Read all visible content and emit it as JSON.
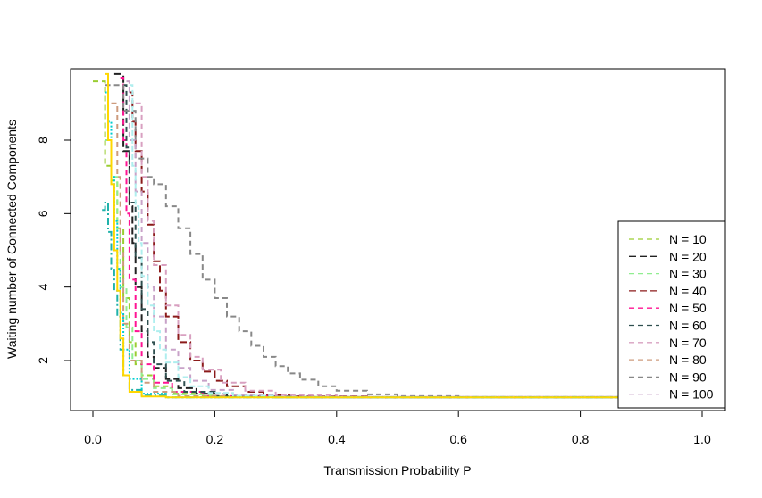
{
  "chart_data": {
    "type": "line",
    "title": "",
    "xlabel": "Transmission Probability P",
    "ylabel": "Waiting number of Connected Components",
    "xlim": [
      0.0,
      1.0
    ],
    "ylim": [
      1.0,
      9.7
    ],
    "x_ticks": [
      "0.0",
      "0.2",
      "0.4",
      "0.6",
      "0.8",
      "1.0"
    ],
    "y_ticks": [
      "2",
      "4",
      "6",
      "8"
    ],
    "grid": false,
    "legend_position": "right",
    "series": [
      {
        "name": "N = 10",
        "color": "#9ACD32",
        "dash": "6,4",
        "points": [
          [
            0.0,
            9.6
          ],
          [
            0.02,
            7.3
          ],
          [
            0.03,
            6.9
          ],
          [
            0.04,
            5.6
          ],
          [
            0.05,
            3.7
          ],
          [
            0.06,
            2.5
          ],
          [
            0.07,
            1.9
          ],
          [
            0.08,
            1.6
          ],
          [
            0.1,
            1.3
          ],
          [
            0.13,
            1.1
          ],
          [
            0.18,
            1.02
          ],
          [
            0.3,
            1.0
          ],
          [
            1.0,
            1.0
          ]
        ]
      },
      {
        "name": "N = 20",
        "color": "#222222",
        "dash": "8,4",
        "points": [
          [
            0.035,
            9.8
          ],
          [
            0.05,
            7.7
          ],
          [
            0.06,
            6.2
          ],
          [
            0.065,
            5.2
          ],
          [
            0.07,
            4.0
          ],
          [
            0.08,
            2.8
          ],
          [
            0.09,
            2.1
          ],
          [
            0.1,
            1.8
          ],
          [
            0.12,
            1.5
          ],
          [
            0.14,
            1.25
          ],
          [
            0.17,
            1.1
          ],
          [
            0.22,
            1.02
          ],
          [
            0.35,
            1.0
          ],
          [
            1.0,
            1.0
          ]
        ]
      },
      {
        "name": "N = 30",
        "color": "#90EE90",
        "dash": "6,4",
        "points": [
          [
            0.02,
            8.0
          ],
          [
            0.03,
            7.0
          ],
          [
            0.04,
            5.5
          ],
          [
            0.045,
            4.0
          ],
          [
            0.055,
            2.9
          ],
          [
            0.065,
            2.0
          ],
          [
            0.08,
            1.5
          ],
          [
            0.1,
            1.25
          ],
          [
            0.13,
            1.08
          ],
          [
            0.2,
            1.01
          ],
          [
            1.0,
            1.0
          ]
        ]
      },
      {
        "name": "N = 40",
        "color": "#8B1A1A",
        "dash": "8,4",
        "points": [
          [
            0.06,
            9.3
          ],
          [
            0.065,
            8.5
          ],
          [
            0.07,
            7.7
          ],
          [
            0.08,
            6.6
          ],
          [
            0.09,
            5.7
          ],
          [
            0.1,
            4.7
          ],
          [
            0.11,
            3.9
          ],
          [
            0.12,
            3.2
          ],
          [
            0.14,
            2.5
          ],
          [
            0.16,
            2.0
          ],
          [
            0.18,
            1.7
          ],
          [
            0.2,
            1.45
          ],
          [
            0.22,
            1.3
          ],
          [
            0.25,
            1.15
          ],
          [
            0.28,
            1.07
          ],
          [
            0.33,
            1.02
          ],
          [
            0.45,
            1.0
          ],
          [
            1.0,
            1.0
          ]
        ]
      },
      {
        "name": "N = 50",
        "color": "#FF1493",
        "dash": "6,4",
        "points": [
          [
            0.045,
            9.7
          ],
          [
            0.05,
            8.0
          ],
          [
            0.055,
            6.0
          ],
          [
            0.06,
            4.2
          ],
          [
            0.07,
            2.8
          ],
          [
            0.08,
            1.9
          ],
          [
            0.1,
            1.4
          ],
          [
            0.13,
            1.15
          ],
          [
            0.18,
            1.03
          ],
          [
            0.3,
            1.0
          ],
          [
            1.0,
            1.0
          ]
        ]
      },
      {
        "name": "N = 60",
        "color": "#2F4F4F",
        "dash": "6,4",
        "points": [
          [
            0.05,
            9.5
          ],
          [
            0.055,
            7.8
          ],
          [
            0.06,
            6.3
          ],
          [
            0.07,
            4.8
          ],
          [
            0.08,
            3.4
          ],
          [
            0.09,
            2.5
          ],
          [
            0.1,
            1.9
          ],
          [
            0.12,
            1.45
          ],
          [
            0.15,
            1.15
          ],
          [
            0.2,
            1.03
          ],
          [
            0.3,
            1.0
          ],
          [
            1.0,
            1.0
          ]
        ]
      },
      {
        "name": "N = 70",
        "color": "#D8A0C0",
        "dash": "6,4",
        "points": [
          [
            0.07,
            9.0
          ],
          [
            0.08,
            7.0
          ],
          [
            0.09,
            5.8
          ],
          [
            0.1,
            4.6
          ],
          [
            0.12,
            3.5
          ],
          [
            0.14,
            2.7
          ],
          [
            0.16,
            2.1
          ],
          [
            0.18,
            1.75
          ],
          [
            0.21,
            1.4
          ],
          [
            0.25,
            1.18
          ],
          [
            0.3,
            1.06
          ],
          [
            0.4,
            1.01
          ],
          [
            1.0,
            1.0
          ]
        ]
      },
      {
        "name": "N = 80",
        "color": "#CD9B7D",
        "dash": "6,4",
        "points": [
          [
            0.03,
            9.0
          ],
          [
            0.04,
            7.0
          ],
          [
            0.045,
            5.0
          ],
          [
            0.05,
            3.0
          ],
          [
            0.06,
            2.0
          ],
          [
            0.08,
            1.4
          ],
          [
            0.1,
            1.15
          ],
          [
            0.14,
            1.03
          ],
          [
            0.22,
            1.0
          ],
          [
            1.0,
            1.0
          ]
        ]
      },
      {
        "name": "N = 90",
        "color": "#888888",
        "dash": "6,4",
        "points": [
          [
            0.02,
            9.5
          ],
          [
            0.05,
            8.8
          ],
          [
            0.07,
            7.5
          ],
          [
            0.09,
            7.0
          ],
          [
            0.1,
            6.8
          ],
          [
            0.12,
            6.2
          ],
          [
            0.14,
            5.6
          ],
          [
            0.16,
            4.9
          ],
          [
            0.18,
            4.2
          ],
          [
            0.2,
            3.7
          ],
          [
            0.22,
            3.2
          ],
          [
            0.24,
            2.8
          ],
          [
            0.26,
            2.4
          ],
          [
            0.28,
            2.1
          ],
          [
            0.3,
            1.85
          ],
          [
            0.32,
            1.65
          ],
          [
            0.34,
            1.48
          ],
          [
            0.37,
            1.3
          ],
          [
            0.4,
            1.18
          ],
          [
            0.45,
            1.08
          ],
          [
            0.5,
            1.03
          ],
          [
            0.6,
            1.0
          ],
          [
            1.0,
            1.0
          ]
        ]
      },
      {
        "name": "N = 100",
        "color": "#C8A2C8",
        "dash": "6,4",
        "points": [
          [
            0.055,
            9.6
          ],
          [
            0.06,
            8.0
          ],
          [
            0.07,
            6.6
          ],
          [
            0.08,
            5.2
          ],
          [
            0.09,
            4.0
          ],
          [
            0.1,
            3.2
          ],
          [
            0.12,
            2.3
          ],
          [
            0.14,
            1.8
          ],
          [
            0.16,
            1.45
          ],
          [
            0.19,
            1.2
          ],
          [
            0.23,
            1.06
          ],
          [
            0.3,
            1.01
          ],
          [
            1.0,
            1.0
          ]
        ]
      },
      {
        "name": "",
        "color": "#AFEEEE",
        "dash": "6,3",
        "points": [
          [
            0.06,
            9.5
          ],
          [
            0.065,
            7.3
          ],
          [
            0.07,
            6.2
          ],
          [
            0.075,
            5.2
          ],
          [
            0.08,
            4.3
          ],
          [
            0.09,
            3.5
          ],
          [
            0.1,
            2.8
          ],
          [
            0.11,
            2.3
          ],
          [
            0.12,
            1.95
          ],
          [
            0.14,
            1.55
          ],
          [
            0.16,
            1.3
          ],
          [
            0.19,
            1.12
          ],
          [
            0.23,
            1.04
          ],
          [
            0.3,
            1.0
          ],
          [
            1.0,
            1.0
          ]
        ]
      },
      {
        "name": "",
        "color": "#20B2AA",
        "dash": "8,3,2,3",
        "points": [
          [
            0.015,
            6.1
          ],
          [
            0.02,
            6.3
          ],
          [
            0.025,
            5.5
          ],
          [
            0.03,
            4.5
          ],
          [
            0.035,
            3.9
          ],
          [
            0.04,
            3.2
          ],
          [
            0.045,
            2.3
          ],
          [
            0.05,
            1.6
          ],
          [
            0.06,
            1.2
          ],
          [
            0.08,
            1.05
          ],
          [
            0.12,
            1.0
          ],
          [
            1.0,
            1.0
          ]
        ]
      },
      {
        "name": "",
        "color": "#00CED1",
        "dash": "2,2",
        "points": [
          [
            0.02,
            9.3
          ],
          [
            0.025,
            8.5
          ],
          [
            0.03,
            7.0
          ],
          [
            0.035,
            5.8
          ],
          [
            0.04,
            4.5
          ],
          [
            0.045,
            3.3
          ],
          [
            0.05,
            2.3
          ],
          [
            0.06,
            1.5
          ],
          [
            0.08,
            1.1
          ],
          [
            0.12,
            1.0
          ],
          [
            1.0,
            1.0
          ]
        ]
      },
      {
        "name": "",
        "color": "#FFD700",
        "dash": "",
        "points": [
          [
            0.02,
            9.8
          ],
          [
            0.025,
            8.0
          ],
          [
            0.03,
            6.8
          ],
          [
            0.035,
            5.0
          ],
          [
            0.04,
            3.9
          ],
          [
            0.045,
            2.6
          ],
          [
            0.05,
            1.6
          ],
          [
            0.06,
            1.15
          ],
          [
            0.08,
            1.02
          ],
          [
            0.12,
            1.0
          ],
          [
            1.0,
            1.0
          ]
        ]
      }
    ]
  }
}
